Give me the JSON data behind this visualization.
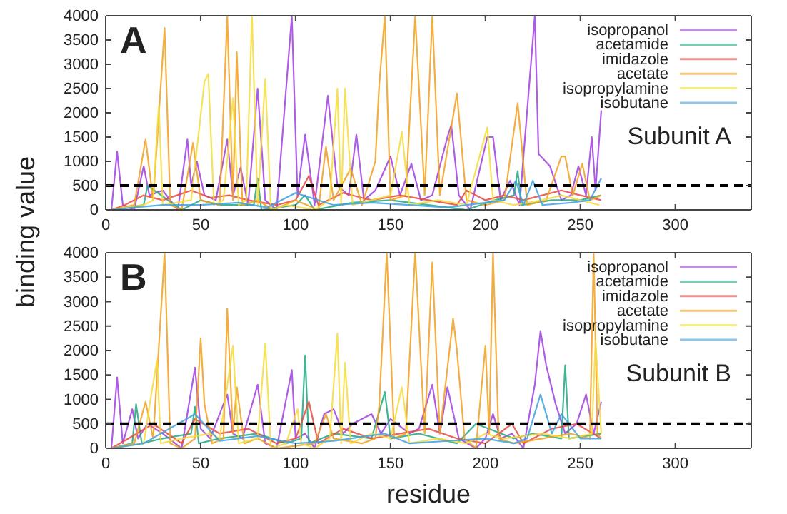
{
  "chart_data": [
    {
      "type": "line",
      "ylabel": "binding value",
      "xlim": [
        0,
        340
      ],
      "ylim": [
        0,
        4000
      ],
      "xticks": [
        0,
        50,
        100,
        150,
        200,
        250,
        300
      ],
      "yticks": [
        0,
        500,
        1000,
        1500,
        2000,
        2500,
        3000,
        3500,
        4000
      ],
      "grid": false,
      "legend": "top right",
      "annotations": [
        "A",
        "Subunit A"
      ],
      "ref_lines": [
        {
          "axis": "y",
          "value": 500,
          "color": "#000000",
          "line_style": "dashed"
        }
      ],
      "series": [
        {
          "name": "isopropanol",
          "color": "#a040e0",
          "x": [
            3,
            6,
            9,
            15,
            20,
            23,
            30,
            38,
            43,
            45,
            48,
            52,
            58,
            64,
            67,
            71,
            75,
            80,
            84,
            90,
            98,
            101,
            105,
            110,
            117,
            122,
            128,
            132,
            136,
            142,
            150,
            155,
            161,
            166,
            172,
            180,
            182,
            186,
            192,
            201,
            204,
            208,
            213,
            218,
            226,
            228,
            234,
            240,
            245,
            249,
            253,
            256,
            258,
            261
          ],
          "values": [
            0,
            1200,
            100,
            0,
            900,
            300,
            400,
            0,
            1450,
            500,
            1000,
            300,
            200,
            1450,
            300,
            870,
            100,
            2500,
            200,
            0,
            4000,
            300,
            1550,
            100,
            2350,
            500,
            300,
            1550,
            200,
            400,
            1100,
            300,
            950,
            200,
            300,
            1500,
            1750,
            300,
            0,
            1500,
            1500,
            200,
            600,
            100,
            4000,
            1150,
            900,
            200,
            300,
            900,
            300,
            1500,
            400,
            2050
          ]
        },
        {
          "name": "acetamide",
          "color": "#20a880",
          "x": [
            3,
            20,
            22,
            40,
            50,
            60,
            78,
            80,
            82,
            100,
            105,
            110,
            130,
            150,
            170,
            190,
            205,
            215,
            217,
            219,
            235,
            250,
            261
          ],
          "values": [
            0,
            100,
            500,
            0,
            200,
            100,
            100,
            650,
            0,
            100,
            300,
            0,
            150,
            200,
            100,
            0,
            200,
            300,
            800,
            100,
            200,
            200,
            300
          ]
        },
        {
          "name": "imidazole",
          "color": "#e84a40",
          "x": [
            3,
            10,
            20,
            30,
            45,
            55,
            65,
            75,
            90,
            100,
            107,
            112,
            125,
            140,
            155,
            170,
            185,
            190,
            200,
            210,
            220,
            240,
            250,
            261
          ],
          "values": [
            0,
            100,
            300,
            200,
            400,
            250,
            300,
            200,
            100,
            200,
            700,
            100,
            350,
            200,
            300,
            200,
            100,
            400,
            200,
            300,
            200,
            400,
            300,
            200
          ]
        },
        {
          "name": "acetate",
          "color": "#f0a020",
          "x": [
            3,
            15,
            21,
            25,
            31,
            34,
            40,
            46,
            50,
            60,
            64,
            67,
            69,
            72,
            80,
            88,
            100,
            112,
            116,
            120,
            129,
            135,
            142,
            144,
            147,
            150,
            158,
            163,
            168,
            172,
            176,
            185,
            190,
            200,
            210,
            217,
            222,
            232,
            240,
            242,
            246,
            251,
            255,
            261
          ],
          "values": [
            0,
            100,
            1450,
            200,
            3750,
            100,
            0,
            1380,
            200,
            100,
            4000,
            200,
            3250,
            100,
            200,
            0,
            200,
            0,
            1300,
            200,
            850,
            100,
            1000,
            2550,
            4000,
            200,
            300,
            4000,
            300,
            4000,
            300,
            2400,
            200,
            100,
            200,
            2200,
            100,
            200,
            1100,
            1100,
            300,
            950,
            200,
            300
          ]
        },
        {
          "name": "isopropylamine",
          "color": "#f5dc3c",
          "x": [
            3,
            20,
            25,
            27,
            28,
            30,
            45,
            52,
            54,
            57,
            62,
            67,
            70,
            74,
            77,
            80,
            84,
            87,
            95,
            110,
            118,
            122,
            124,
            126,
            130,
            140,
            150,
            156,
            160,
            175,
            190,
            201,
            204,
            215,
            230,
            240,
            250,
            260
          ],
          "values": [
            0,
            100,
            200,
            1600,
            2150,
            100,
            200,
            2650,
            2800,
            100,
            200,
            2300,
            100,
            200,
            4000,
            100,
            2700,
            0,
            100,
            0,
            200,
            2500,
            100,
            2500,
            100,
            200,
            300,
            1600,
            100,
            200,
            100,
            1700,
            200,
            100,
            200,
            300,
            200,
            100
          ]
        },
        {
          "name": "isobutane",
          "color": "#40a0e0",
          "x": [
            3,
            15,
            30,
            50,
            70,
            85,
            100,
            120,
            140,
            160,
            180,
            200,
            210,
            216,
            220,
            225,
            230,
            245,
            255,
            261
          ],
          "values": [
            0,
            50,
            100,
            100,
            150,
            50,
            350,
            100,
            150,
            100,
            50,
            150,
            200,
            600,
            100,
            600,
            100,
            150,
            200,
            650
          ]
        }
      ]
    },
    {
      "type": "line",
      "xlabel": "residue",
      "xlim": [
        0,
        340
      ],
      "ylim": [
        0,
        4000
      ],
      "xticks": [
        0,
        50,
        100,
        150,
        200,
        250,
        300
      ],
      "yticks": [
        0,
        500,
        1000,
        1500,
        2000,
        2500,
        3000,
        3500,
        4000
      ],
      "grid": false,
      "legend": "top right",
      "annotations": [
        "B",
        "Subunit B"
      ],
      "ref_lines": [
        {
          "axis": "y",
          "value": 500,
          "color": "#000000",
          "line_style": "dashed"
        }
      ],
      "series": [
        {
          "name": "isopropanol",
          "color": "#a040e0",
          "x": [
            3,
            6,
            9,
            14,
            17,
            22,
            30,
            40,
            47,
            50,
            55,
            64,
            67,
            72,
            80,
            84,
            90,
            98,
            100,
            105,
            110,
            115,
            120,
            125,
            130,
            140,
            145,
            150,
            160,
            165,
            172,
            176,
            180,
            186,
            195,
            200,
            204,
            208,
            214,
            220,
            226,
            229,
            232,
            237,
            242,
            248,
            253,
            257,
            261
          ],
          "values": [
            0,
            1450,
            100,
            800,
            200,
            500,
            300,
            0,
            1650,
            400,
            200,
            1100,
            300,
            200,
            1300,
            100,
            0,
            1600,
            200,
            300,
            0,
            700,
            800,
            300,
            500,
            700,
            300,
            600,
            300,
            400,
            1300,
            300,
            1250,
            200,
            0,
            200,
            700,
            200,
            300,
            0,
            1300,
            2400,
            1700,
            900,
            300,
            500,
            1100,
            300,
            950
          ]
        },
        {
          "name": "acetamide",
          "color": "#20a880",
          "x": [
            3,
            14,
            16,
            19,
            30,
            45,
            47,
            49,
            60,
            80,
            95,
            103,
            105,
            107,
            120,
            140,
            147,
            150,
            165,
            185,
            195,
            215,
            225,
            240,
            242,
            244,
            261
          ],
          "values": [
            0,
            100,
            900,
            100,
            200,
            300,
            850,
            100,
            200,
            300,
            100,
            200,
            1900,
            100,
            300,
            200,
            1150,
            200,
            300,
            100,
            500,
            200,
            300,
            200,
            1700,
            200,
            300
          ]
        },
        {
          "name": "imidazole",
          "color": "#e84a40",
          "x": [
            3,
            12,
            25,
            40,
            47,
            60,
            75,
            90,
            100,
            107,
            112,
            125,
            140,
            155,
            170,
            185,
            200,
            214,
            220,
            235,
            248,
            261
          ],
          "values": [
            0,
            200,
            500,
            100,
            600,
            300,
            400,
            100,
            200,
            950,
            100,
            400,
            200,
            300,
            400,
            200,
            100,
            500,
            100,
            400,
            500,
            200
          ]
        },
        {
          "name": "acetate",
          "color": "#f0a020",
          "x": [
            3,
            15,
            21,
            25,
            31,
            34,
            40,
            47,
            50,
            52,
            56,
            62,
            64,
            67,
            69,
            73,
            80,
            90,
            110,
            116,
            120,
            135,
            142,
            144,
            148,
            152,
            158,
            163,
            168,
            172,
            176,
            183,
            185,
            189,
            195,
            200,
            202,
            204,
            207,
            215,
            230,
            245,
            255,
            257,
            259,
            261
          ],
          "values": [
            0,
            100,
            950,
            200,
            4000,
            100,
            0,
            200,
            2250,
            900,
            100,
            200,
            2850,
            300,
            1250,
            100,
            200,
            0,
            100,
            700,
            200,
            100,
            200,
            850,
            4000,
            200,
            300,
            4000,
            300,
            3800,
            300,
            2650,
            2000,
            200,
            0,
            2100,
            300,
            4000,
            200,
            100,
            200,
            300,
            200,
            4000,
            300,
            200
          ]
        },
        {
          "name": "isopropylamine",
          "color": "#f5dc3c",
          "x": [
            3,
            20,
            24,
            27,
            29,
            40,
            55,
            60,
            67,
            70,
            80,
            84,
            87,
            95,
            101,
            103,
            110,
            118,
            122,
            124,
            126,
            129,
            140,
            150,
            156,
            160,
            175,
            190,
            200,
            210,
            230,
            245,
            256,
            258,
            261
          ],
          "values": [
            0,
            100,
            1100,
            1800,
            100,
            200,
            300,
            200,
            2100,
            100,
            200,
            2150,
            0,
            100,
            800,
            100,
            0,
            200,
            2350,
            100,
            1750,
            100,
            300,
            200,
            1250,
            100,
            200,
            100,
            300,
            200,
            300,
            200,
            300,
            2200,
            300
          ]
        },
        {
          "name": "isobutane",
          "color": "#40a0e0",
          "x": [
            3,
            20,
            47,
            60,
            80,
            100,
            120,
            147,
            160,
            180,
            200,
            215,
            222,
            229,
            235,
            240,
            250,
            261
          ],
          "values": [
            0,
            100,
            700,
            150,
            250,
            100,
            150,
            300,
            100,
            150,
            200,
            100,
            200,
            1100,
            300,
            700,
            200,
            200
          ]
        }
      ]
    }
  ]
}
